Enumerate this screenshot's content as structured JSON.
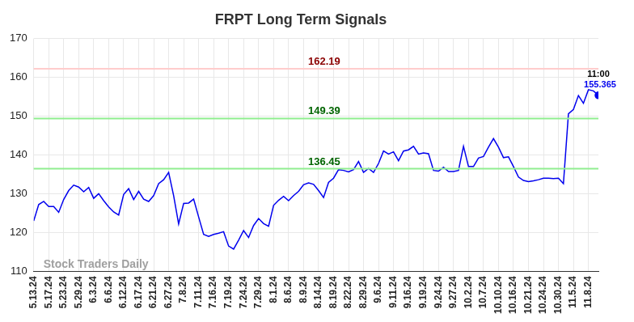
{
  "chart_data": {
    "type": "line",
    "title": "FRPT Long Term Signals",
    "categories": [
      "5.13.24",
      null,
      null,
      "5.17.24",
      null,
      null,
      "5.23.24",
      null,
      null,
      "5.29.24",
      null,
      null,
      "6.3.24",
      null,
      null,
      "6.6.24",
      null,
      null,
      "6.12.24",
      null,
      null,
      "6.17.24",
      null,
      null,
      "6.21.24",
      null,
      null,
      "6.27.24",
      null,
      null,
      "7.8.24",
      null,
      null,
      "7.11.24",
      null,
      null,
      "7.16.24",
      null,
      null,
      "7.19.24",
      null,
      null,
      "7.24.24",
      null,
      null,
      "7.29.24",
      null,
      null,
      "8.1.24",
      null,
      null,
      "8.6.24",
      null,
      null,
      "8.9.24",
      null,
      null,
      "8.14.24",
      null,
      null,
      "8.19.24",
      null,
      null,
      "8.22.24",
      null,
      null,
      "8.29.24",
      null,
      null,
      "9.6.24",
      null,
      null,
      "9.11.24",
      null,
      null,
      "9.16.24",
      null,
      null,
      "9.19.24",
      null,
      null,
      "9.24.24",
      null,
      null,
      "9.27.24",
      null,
      null,
      "10.2.24",
      null,
      null,
      "10.7.24",
      null,
      null,
      "10.10.24",
      null,
      null,
      "10.16.24",
      null,
      null,
      "10.21.24",
      null,
      null,
      "10.24.24",
      null,
      null,
      "10.30.24",
      null,
      null,
      "11.5.24",
      null,
      null,
      "11.8.24",
      null,
      null
    ],
    "values": [
      123,
      127.2,
      128,
      126.7,
      126.7,
      125.2,
      128.5,
      130.8,
      132.2,
      131.7,
      130.5,
      131.6,
      128.8,
      130,
      128.2,
      126.6,
      125.3,
      124.5,
      129.8,
      131.3,
      128.5,
      130.6,
      128.6,
      128,
      129.5,
      132.6,
      133.6,
      135.5,
      129.5,
      122.2,
      127.5,
      127.6,
      128.6,
      124,
      119.5,
      119,
      119.5,
      119.8,
      120.2,
      116.5,
      115.7,
      118,
      120.5,
      118.7,
      121.8,
      123.6,
      122.3,
      121.6,
      127,
      128.3,
      129.3,
      128.2,
      129.5,
      130.6,
      132.3,
      132.8,
      132.4,
      130.8,
      129,
      132.9,
      134,
      136.2,
      136,
      135.6,
      136.2,
      138.3,
      135.5,
      136.5,
      135.5,
      137.8,
      141,
      140.2,
      140.8,
      138.5,
      141,
      141.3,
      142.2,
      140.2,
      140.5,
      140.3,
      136,
      135.8,
      136.8,
      135.7,
      135.7,
      136,
      142.2,
      137,
      137,
      139.2,
      139.6,
      142,
      144.2,
      142,
      139.3,
      139.5,
      137,
      134.3,
      133.4,
      133.1,
      133.3,
      133.6,
      134,
      134,
      133.9,
      134,
      132.6,
      150.6,
      151.7,
      155.3,
      153.3,
      156.8,
      156.5,
      155.365
    ],
    "color": "#0000ee",
    "ylim": [
      110,
      170
    ],
    "yticks": [
      110,
      120,
      130,
      140,
      150,
      160,
      170
    ],
    "grid": true,
    "reference_lines": [
      {
        "value": 162.19,
        "label": "162.19",
        "color": "#ffcccc",
        "label_color": "#8b0000"
      },
      {
        "value": 149.39,
        "label": "149.39",
        "color": "#90ee90",
        "label_color": "#006400"
      },
      {
        "value": 136.45,
        "label": "136.45",
        "color": "#90ee90",
        "label_color": "#006400"
      }
    ],
    "last_point": {
      "time_label": "11:00",
      "value_label": "155.365"
    },
    "watermark": "Stock Traders Daily"
  }
}
